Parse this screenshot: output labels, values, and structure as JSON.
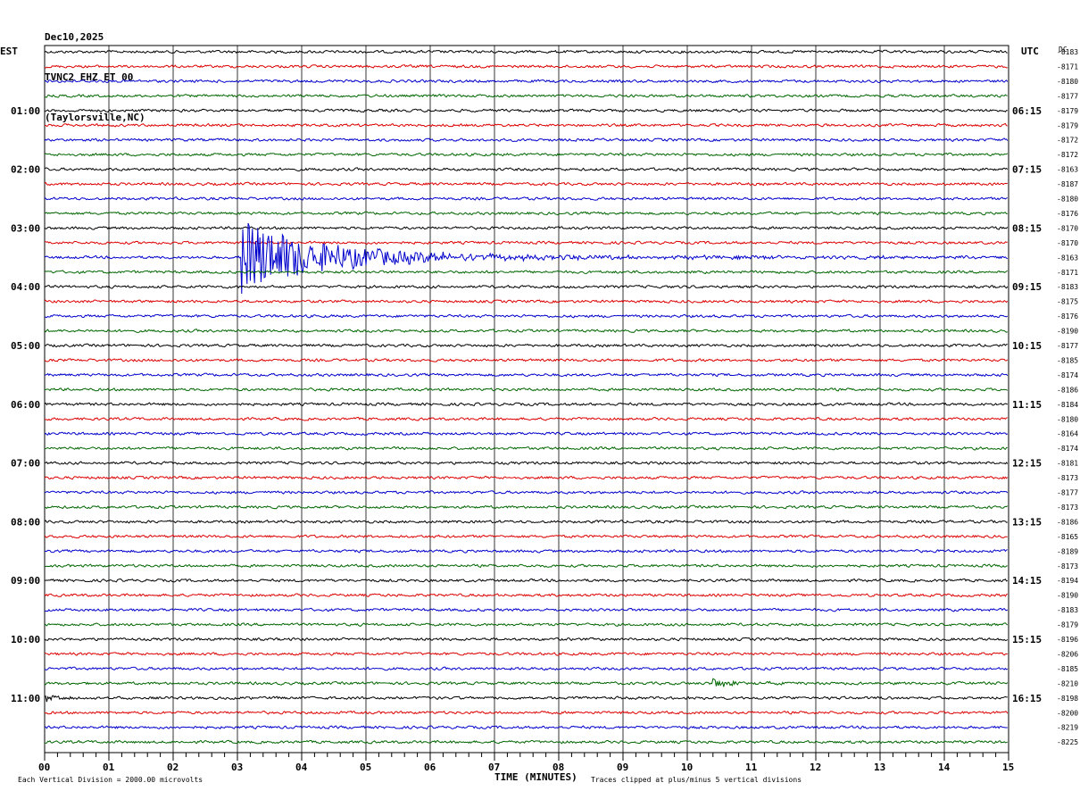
{
  "header": {
    "date": "Dec10,2025",
    "station": "TVNC2 EHZ ET 00",
    "location": "(Taylorsville,NC)"
  },
  "labels": {
    "left_tz": "EST",
    "right_tz": "UTC",
    "dc_label": "DC",
    "xlabel": "TIME (MINUTES)",
    "footer_left": "Each Vertical Division = 2000.00 microvolts",
    "footer_right": "Traces clipped at plus/minus 5 vertical divisions"
  },
  "colors": {
    "cycle": [
      "#000000",
      "#dd0000",
      "#0000cc",
      "#006600"
    ],
    "grid": "#000000"
  },
  "chart_data": {
    "type": "line",
    "title": "",
    "x_range": [
      0,
      15
    ],
    "x_ticks": [
      "00",
      "01",
      "02",
      "03",
      "04",
      "05",
      "06",
      "07",
      "08",
      "09",
      "10",
      "11",
      "12",
      "13",
      "14",
      "15"
    ],
    "rows_per_hour": 4,
    "minutes_per_row": 15,
    "row_count": 48,
    "est_hour_labels": [
      "",
      "01:00",
      "02:00",
      "03:00",
      "04:00",
      "05:00",
      "06:00",
      "07:00",
      "08:00",
      "09:00",
      "10:00",
      "11:00"
    ],
    "utc_hour_labels": [
      "",
      "06:15",
      "07:15",
      "08:15",
      "09:15",
      "10:15",
      "11:15",
      "12:15",
      "13:15",
      "14:15",
      "15:15",
      "16:15"
    ],
    "dc_offsets": [
      "-8183",
      "-8171",
      "-8180",
      "-8177",
      "-8179",
      "-8179",
      "-8172",
      "-8172",
      "-8163",
      "-8187",
      "-8180",
      "-8176",
      "-8170",
      "-8170",
      "-8163",
      "-8171",
      "-8183",
      "-8175",
      "-8176",
      "-8190",
      "-8177",
      "-8185",
      "-8174",
      "-8186",
      "-8184",
      "-8180",
      "-8164",
      "-8174",
      "-8181",
      "-8173",
      "-8177",
      "-8173",
      "-8186",
      "-8165",
      "-8189",
      "-8173",
      "-8194",
      "-8190",
      "-8183",
      "-8179",
      "-8196",
      "-8206",
      "-8185",
      "-8210",
      "-8198",
      "-8200",
      "-8219",
      "-8225"
    ],
    "events": [
      {
        "row": 14,
        "start_minute": 3.05,
        "peak_divisions": 5,
        "decay_minutes": 6.5,
        "note": "earthquake signal"
      },
      {
        "row": 43,
        "start_minute": 10.4,
        "peak_divisions": 0.4,
        "decay_minutes": 0.5
      },
      {
        "row": 44,
        "start_minute": 0.0,
        "peak_divisions": 0.5,
        "decay_minutes": 0.3
      }
    ]
  }
}
